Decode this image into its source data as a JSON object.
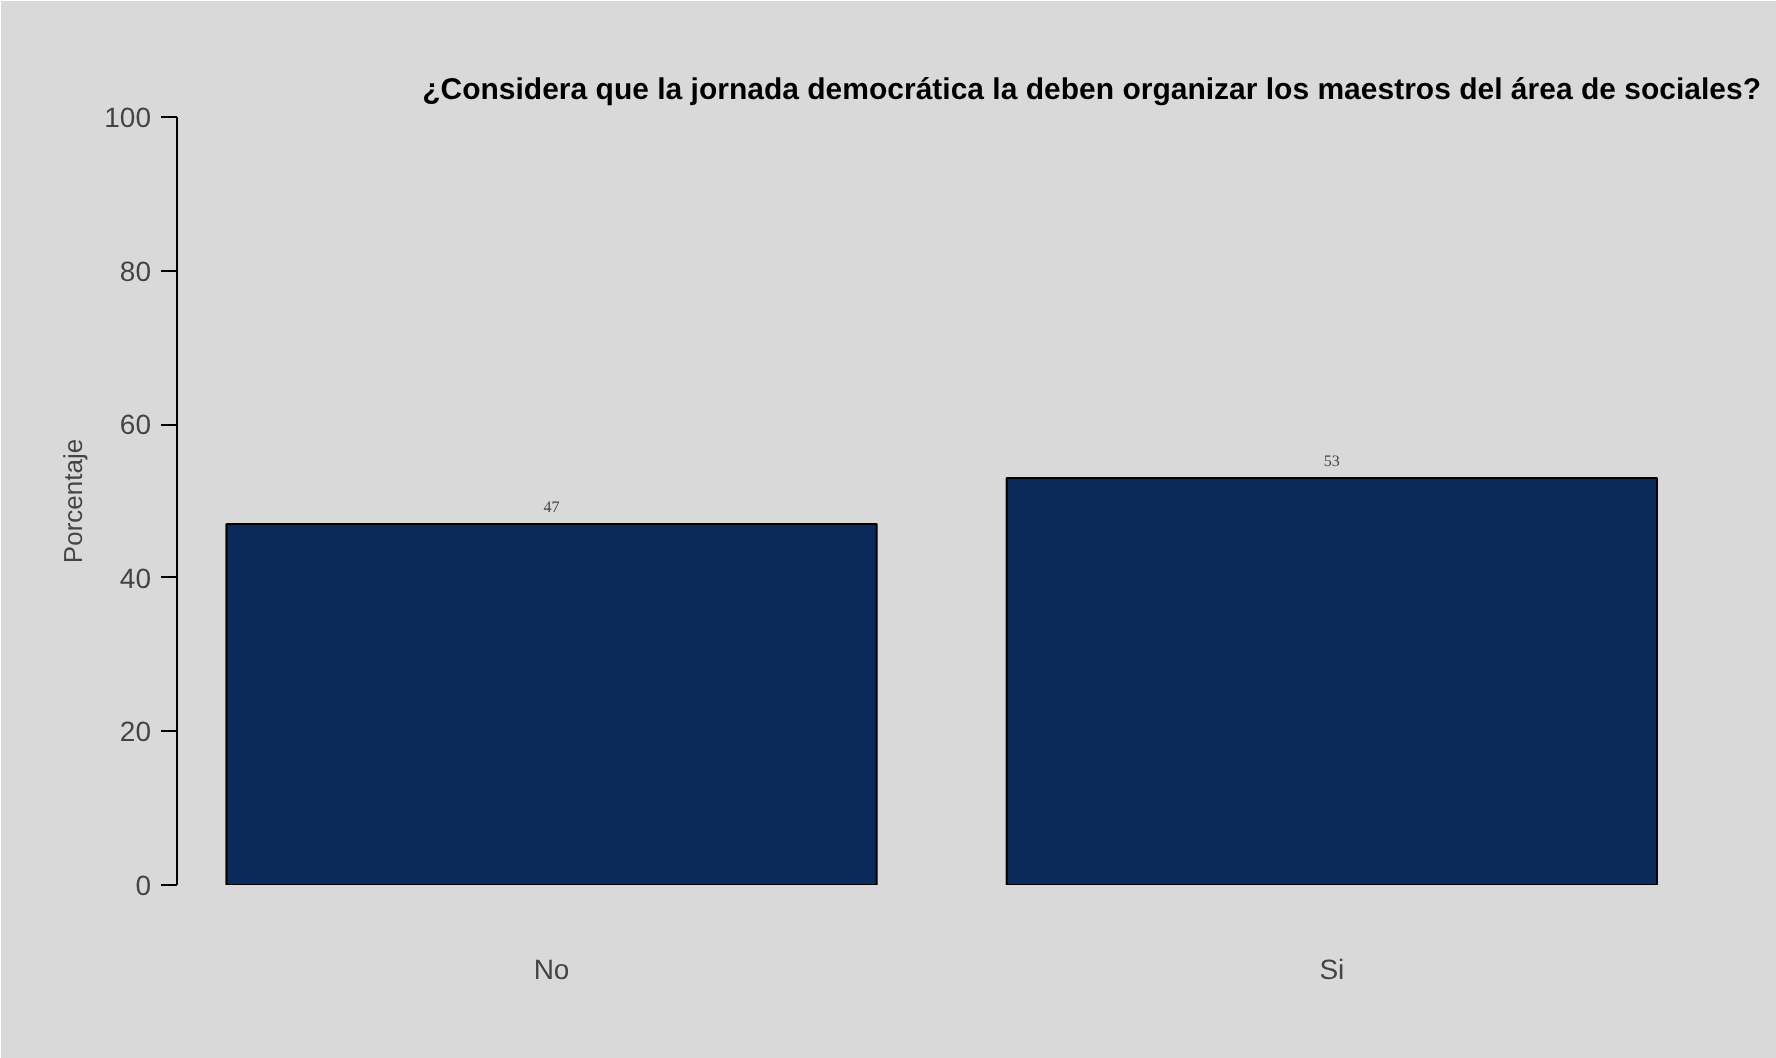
{
  "chart_data": {
    "type": "bar",
    "title": "¿Considera que la jornada democrática la deben organizar los maestros del área de sociales?",
    "ylabel": "Porcentaje",
    "categories": [
      "No",
      "Si"
    ],
    "values": [
      47,
      53
    ],
    "color": "#0b2a5c",
    "ylim": [
      0,
      100
    ],
    "yticks": [
      0,
      20,
      40,
      60,
      80,
      100
    ],
    "grid": false,
    "data_labels": true
  }
}
